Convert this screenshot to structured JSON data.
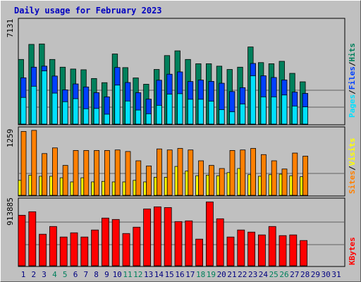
{
  "title": "Daily usage for February 2023",
  "colors": {
    "hits": "#00805c",
    "files": "#0040ff",
    "pages": "#00e0ff",
    "visits": "#ffff00",
    "sites": "#ff8000",
    "kbytes": "#ff0000",
    "weekend_day": "#00805c",
    "weekday_day": "#000080"
  },
  "chart_data": [
    {
      "type": "bar",
      "title": "Daily usage for February 2023",
      "max_label": "7131",
      "ylim": [
        0,
        7131
      ],
      "legend": [
        {
          "name": "Pages",
          "color": "#00e0ff"
        },
        {
          "name": "Files",
          "color": "#0040ff"
        },
        {
          "name": "Hits",
          "color": "#00805c"
        }
      ],
      "categories": [
        "1",
        "2",
        "3",
        "4",
        "5",
        "6",
        "7",
        "8",
        "9",
        "10",
        "11",
        "12",
        "13",
        "14",
        "15",
        "16",
        "17",
        "18",
        "19",
        "20",
        "21",
        "22",
        "23",
        "24",
        "25",
        "26",
        "27",
        "28",
        "29",
        "30",
        "31"
      ],
      "series": [
        {
          "name": "Hits",
          "values": [
            4510,
            5560,
            5590,
            4510,
            3970,
            3840,
            3790,
            3180,
            2890,
            4890,
            3940,
            3220,
            2780,
            3810,
            4780,
            5110,
            4510,
            4210,
            4210,
            4040,
            3810,
            3970,
            5380,
            4290,
            4210,
            4380,
            3540,
            2950,
            null,
            null,
            null
          ]
        },
        {
          "name": "Files",
          "values": [
            3230,
            3970,
            4040,
            3350,
            2390,
            2800,
            2590,
            2190,
            1900,
            3950,
            2900,
            2190,
            1740,
            3060,
            3480,
            3640,
            2970,
            3070,
            2980,
            2850,
            2270,
            2540,
            4230,
            3370,
            3250,
            3080,
            2230,
            2140,
            null,
            null,
            null
          ]
        },
        {
          "name": "Pages",
          "values": [
            1860,
            2640,
            3710,
            2160,
            1560,
            1770,
            1070,
            1090,
            690,
            2720,
            1610,
            980,
            720,
            1310,
            2090,
            2120,
            1730,
            1730,
            1600,
            1010,
            860,
            1400,
            3370,
            1900,
            1900,
            2030,
            1260,
            1200,
            null,
            null,
            null
          ]
        }
      ]
    },
    {
      "type": "bar",
      "max_label": "1259",
      "ylim": [
        0,
        1259
      ],
      "legend": [
        {
          "name": "Sites",
          "color": "#ff8000"
        },
        {
          "name": "Visits",
          "color": "#ffff00"
        }
      ],
      "categories": [
        "1",
        "2",
        "3",
        "4",
        "5",
        "6",
        "7",
        "8",
        "9",
        "10",
        "11",
        "12",
        "13",
        "14",
        "15",
        "16",
        "17",
        "18",
        "19",
        "20",
        "21",
        "22",
        "23",
        "24",
        "25",
        "26",
        "27",
        "28",
        "29",
        "30",
        "31"
      ],
      "series": [
        {
          "name": "Visits",
          "values": [
            290,
            390,
            370,
            370,
            340,
            260,
            340,
            260,
            270,
            260,
            260,
            290,
            260,
            350,
            350,
            560,
            470,
            380,
            390,
            380,
            440,
            520,
            400,
            370,
            400,
            410,
            380,
            360,
            null,
            null,
            null
          ]
        },
        {
          "name": "Sites",
          "values": [
            1240,
            1260,
            810,
            920,
            580,
            870,
            870,
            870,
            870,
            880,
            850,
            670,
            570,
            900,
            880,
            910,
            880,
            670,
            580,
            520,
            870,
            880,
            910,
            790,
            670,
            510,
            820,
            760,
            null,
            null,
            null
          ]
        }
      ]
    },
    {
      "type": "bar",
      "max_label": "913885",
      "ylim": [
        0,
        913885
      ],
      "legend": [
        {
          "name": "KBytes",
          "color": "#ff0000"
        }
      ],
      "categories": [
        "1",
        "2",
        "3",
        "4",
        "5",
        "6",
        "7",
        "8",
        "9",
        "10",
        "11",
        "12",
        "13",
        "14",
        "15",
        "16",
        "17",
        "18",
        "19",
        "20",
        "21",
        "22",
        "23",
        "24",
        "25",
        "26",
        "27",
        "28",
        "29",
        "30",
        "31"
      ],
      "series": [
        {
          "name": "KBytes",
          "values": [
            720000,
            770000,
            450000,
            560000,
            410000,
            470000,
            410000,
            510000,
            680000,
            660000,
            460000,
            550000,
            810000,
            840000,
            830000,
            630000,
            640000,
            380000,
            910000,
            670000,
            410000,
            510000,
            480000,
            440000,
            560000,
            430000,
            440000,
            360000,
            null,
            null,
            null
          ]
        }
      ]
    }
  ]
}
